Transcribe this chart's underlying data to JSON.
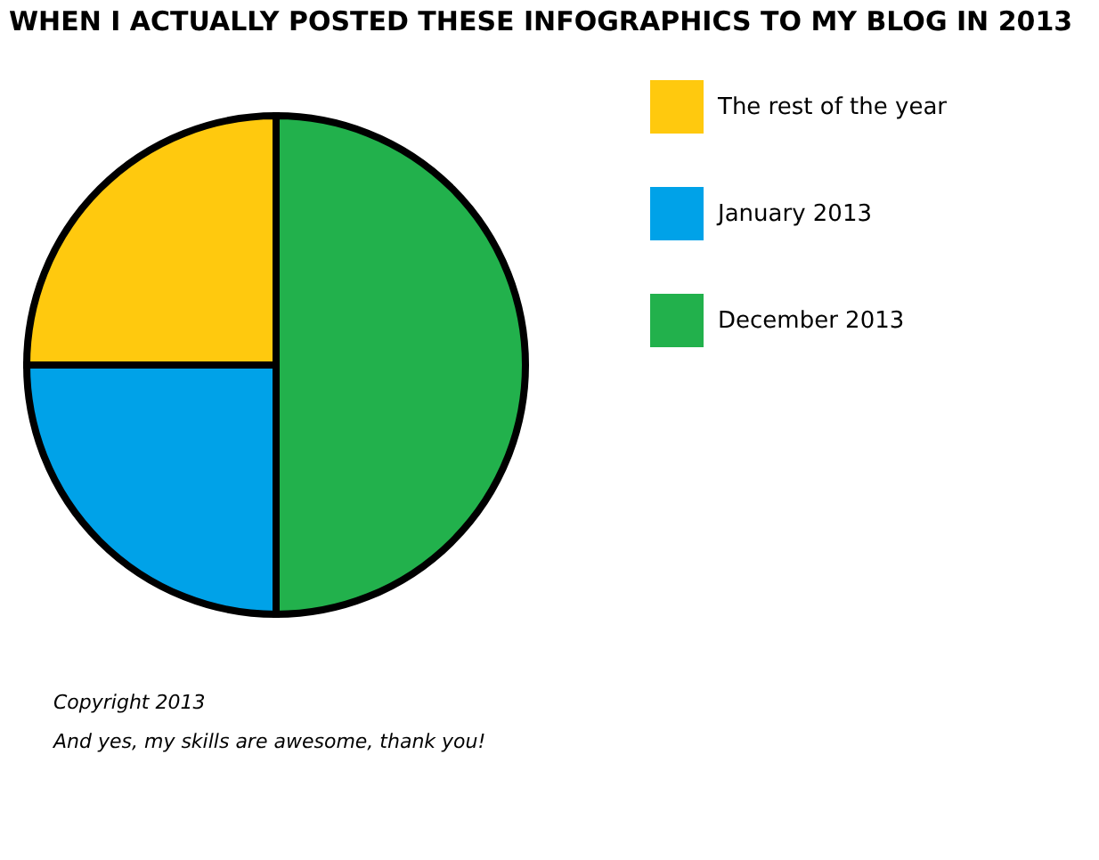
{
  "chart_data": {
    "type": "pie",
    "title": "WHEN I ACTUALLY POSTED THESE INFOGRAPHICS TO MY BLOG IN 2013",
    "categories": [
      "The rest of the year",
      "January 2013",
      "December 2013"
    ],
    "values": [
      25,
      25,
      50
    ],
    "colors": [
      "#ffc90e",
      "#00a2e8",
      "#22b14c"
    ],
    "legend": "top right",
    "annotations": [
      "Copyright 2013",
      "And yes, my skills are awesome, thank you!"
    ]
  }
}
